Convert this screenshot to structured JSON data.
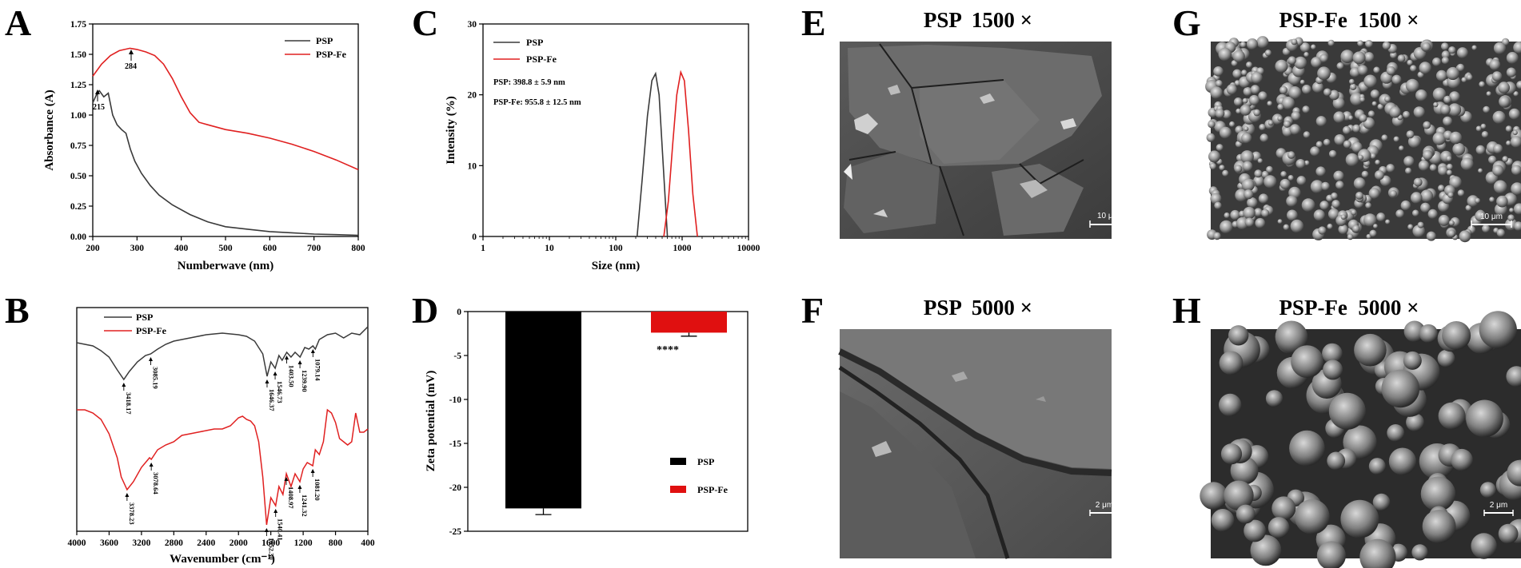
{
  "panels": {
    "A": "A",
    "B": "B",
    "C": "C",
    "D": "D",
    "E": "E",
    "F": "F",
    "G": "G",
    "H": "H"
  },
  "colors": {
    "psp": "#3a3a3a",
    "psp_fe": "#e02020",
    "bar_psp": "#000000",
    "bar_psp_fe": "#e01010"
  },
  "chart_data": [
    {
      "panel": "A",
      "type": "line",
      "xlabel": "Numberwave (nm)",
      "ylabel": "Absorbance (A)",
      "xlim": [
        200,
        800
      ],
      "ylim": [
        0,
        1.75
      ],
      "xticks": [
        "200",
        "300",
        "400",
        "500",
        "600",
        "700",
        "800"
      ],
      "yticks": [
        "0.00",
        "0.25",
        "0.50",
        "0.75",
        "1.00",
        "1.25",
        "1.50",
        "1.75"
      ],
      "annotations": [
        {
          "label": "215",
          "x": 215,
          "y": 1.2
        },
        {
          "label": "284",
          "x": 284,
          "y": 1.55
        }
      ],
      "series": [
        {
          "name": "PSP",
          "x": [
            200,
            210,
            215,
            225,
            235,
            245,
            255,
            265,
            275,
            285,
            295,
            310,
            330,
            350,
            380,
            420,
            460,
            500,
            550,
            600,
            650,
            700,
            750,
            800
          ],
          "y": [
            1.1,
            1.18,
            1.2,
            1.15,
            1.18,
            1.0,
            0.92,
            0.88,
            0.85,
            0.72,
            0.62,
            0.52,
            0.42,
            0.34,
            0.26,
            0.18,
            0.12,
            0.08,
            0.06,
            0.04,
            0.03,
            0.02,
            0.015,
            0.01
          ]
        },
        {
          "name": "PSP-Fe",
          "x": [
            200,
            220,
            240,
            260,
            284,
            300,
            320,
            340,
            360,
            380,
            400,
            420,
            440,
            460,
            500,
            550,
            600,
            650,
            700,
            750,
            800
          ],
          "y": [
            1.32,
            1.42,
            1.49,
            1.53,
            1.55,
            1.54,
            1.52,
            1.49,
            1.42,
            1.3,
            1.15,
            1.02,
            0.94,
            0.92,
            0.88,
            0.85,
            0.81,
            0.76,
            0.7,
            0.63,
            0.55
          ]
        }
      ]
    },
    {
      "panel": "B",
      "type": "line",
      "xlabel": "Wavenumber (cm⁻¹)",
      "xlim": [
        4000,
        400
      ],
      "xticks": [
        "4000",
        "3600",
        "3200",
        "2800",
        "2400",
        "2000",
        "1600",
        "1200",
        "800",
        "400"
      ],
      "annotations_psp": [
        "3418.17",
        "3085.19",
        "1646.37",
        "1546.73",
        "1403.50",
        "1239.90",
        "1079.14"
      ],
      "annotations_fe": [
        "3378.23",
        "3078.64",
        "1652.30",
        "1540.41",
        "1408.97",
        "1241.32",
        "1081.20"
      ],
      "series": [
        {
          "name": "PSP",
          "x": [
            4000,
            3900,
            3800,
            3700,
            3600,
            3500,
            3418,
            3350,
            3250,
            3150,
            3085,
            3000,
            2900,
            2800,
            2600,
            2400,
            2200,
            2000,
            1900,
            1800,
            1700,
            1646,
            1600,
            1546,
            1500,
            1460,
            1403,
            1350,
            1300,
            1239,
            1180,
            1130,
            1079,
            1050,
            1000,
            900,
            800,
            700,
            600,
            500,
            400
          ],
          "y": [
            0.18,
            0.19,
            0.2,
            0.23,
            0.27,
            0.35,
            0.41,
            0.36,
            0.3,
            0.26,
            0.25,
            0.22,
            0.19,
            0.17,
            0.15,
            0.13,
            0.12,
            0.13,
            0.14,
            0.17,
            0.25,
            0.39,
            0.3,
            0.34,
            0.26,
            0.29,
            0.24,
            0.27,
            0.24,
            0.27,
            0.21,
            0.22,
            0.2,
            0.22,
            0.16,
            0.13,
            0.12,
            0.15,
            0.12,
            0.13,
            0.08
          ]
        },
        {
          "name": "PSP-Fe",
          "x": [
            4000,
            3900,
            3800,
            3700,
            3600,
            3500,
            3450,
            3378,
            3300,
            3200,
            3100,
            3078,
            3000,
            2900,
            2800,
            2700,
            2600,
            2500,
            2400,
            2300,
            2200,
            2100,
            2000,
            1950,
            1900,
            1850,
            1800,
            1750,
            1700,
            1652,
            1600,
            1540,
            1500,
            1450,
            1408,
            1350,
            1300,
            1241,
            1200,
            1150,
            1081,
            1050,
            1000,
            950,
            900,
            850,
            800,
            750,
            700,
            650,
            600,
            550,
            500,
            450,
            400
          ],
          "y": [
            0.6,
            0.6,
            0.62,
            0.66,
            0.75,
            0.9,
            1.02,
            1.1,
            1.05,
            0.96,
            0.9,
            0.91,
            0.85,
            0.82,
            0.8,
            0.76,
            0.75,
            0.74,
            0.73,
            0.72,
            0.72,
            0.7,
            0.65,
            0.64,
            0.66,
            0.67,
            0.7,
            0.8,
            1.02,
            1.32,
            1.15,
            1.2,
            1.08,
            1.13,
            1.0,
            1.08,
            1.0,
            1.05,
            0.97,
            0.93,
            0.95,
            0.85,
            0.88,
            0.8,
            0.6,
            0.62,
            0.68,
            0.78,
            0.8,
            0.82,
            0.8,
            0.62,
            0.74,
            0.74,
            0.72
          ]
        }
      ]
    },
    {
      "panel": "C",
      "type": "line",
      "xlabel": "Size (nm)",
      "ylabel": "Intensity (%)",
      "xscale": "log",
      "xlim": [
        1,
        10000
      ],
      "ylim": [
        0,
        30
      ],
      "xticks": [
        "1",
        "10",
        "100",
        "1000",
        "10000"
      ],
      "yticks": [
        "0",
        "10",
        "20",
        "30"
      ],
      "text_lines": [
        "PSP: 398.8 ± 5.9 nm",
        "PSP-Fe: 955.8 ± 12.5 nm"
      ],
      "series": [
        {
          "name": "PSP",
          "x": [
            210,
            250,
            300,
            350,
            398,
            450,
            520,
            600
          ],
          "y": [
            0,
            8,
            17,
            22,
            23,
            20,
            10,
            0
          ]
        },
        {
          "name": "PSP-Fe",
          "x": [
            530,
            620,
            720,
            830,
            955,
            1080,
            1250,
            1450,
            1700
          ],
          "y": [
            0,
            5,
            13,
            20,
            23.2,
            22,
            15,
            6,
            0
          ]
        }
      ]
    },
    {
      "panel": "D",
      "type": "bar",
      "ylabel": "Zeta potential (mV)",
      "ylim": [
        -25,
        0
      ],
      "yticks": [
        "0",
        "-5",
        "-10",
        "-15",
        "-20",
        "-25"
      ],
      "categories": [
        "PSP",
        "PSP-Fe"
      ],
      "values": [
        -22.4,
        -2.4
      ],
      "errors": [
        0.7,
        0.4
      ],
      "significance": "****",
      "legend": [
        "PSP",
        "PSP-Fe"
      ]
    }
  ],
  "sem": {
    "E": {
      "title": "PSP  1500 ×",
      "scale": "10 μm"
    },
    "F": {
      "title": "PSP  5000 ×",
      "scale": "2 μm"
    },
    "G": {
      "title": "PSP-Fe  1500 ×",
      "scale": "10 μm"
    },
    "H": {
      "title": "PSP-Fe  5000 ×",
      "scale": "2 μm"
    }
  }
}
